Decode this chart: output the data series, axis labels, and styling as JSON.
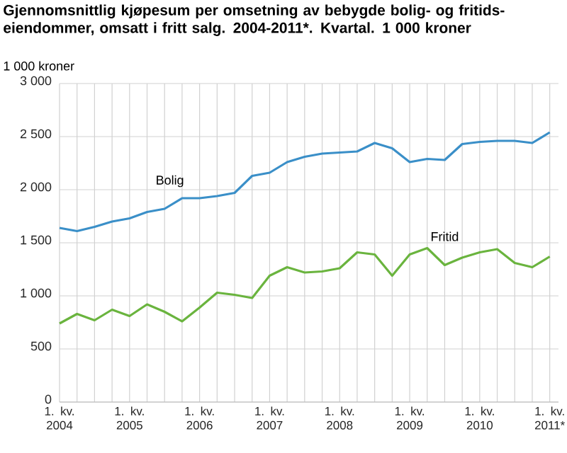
{
  "chart_data": {
    "type": "line",
    "title": "Gjennomsnittlig kjøpesum per omsetning av bebygde bolig- og fritids-eiendommer, omsatt i fritt salg. 2004-2011*. Kvartal. 1 000 kroner",
    "ylabel": "1 000 kroner",
    "categories": [
      "1. kv. 2004",
      null,
      null,
      null,
      "1. kv. 2005",
      null,
      null,
      null,
      "1. kv. 2006",
      null,
      null,
      null,
      "1. kv. 2007",
      null,
      null,
      null,
      "1. kv. 2008",
      null,
      null,
      null,
      "1. kv. 2009",
      null,
      null,
      null,
      "1. kv. 2010",
      null,
      null,
      null,
      "1. kv. 2011*"
    ],
    "series": [
      {
        "name": "Bolig",
        "color": "#3a8fc8",
        "values": [
          1640,
          1610,
          1650,
          1700,
          1730,
          1790,
          1820,
          1920,
          1920,
          1940,
          1970,
          2130,
          2160,
          2260,
          2310,
          2340,
          2350,
          2360,
          2440,
          2390,
          2260,
          2290,
          2280,
          2430,
          2450,
          2460,
          2460,
          2440,
          2540
        ]
      },
      {
        "name": "Fritid",
        "color": "#6ab43e",
        "values": [
          740,
          830,
          770,
          870,
          810,
          920,
          850,
          760,
          890,
          1030,
          1010,
          980,
          1190,
          1270,
          1220,
          1230,
          1260,
          1410,
          1390,
          1190,
          1390,
          1450,
          1290,
          1360,
          1410,
          1440,
          1310,
          1270,
          1370
        ]
      }
    ],
    "ylim": [
      0,
      3000
    ],
    "yticks": [
      0,
      500,
      {
        "value": 1000,
        "label": "1 000"
      },
      {
        "value": 1500,
        "label": "1 500"
      },
      {
        "value": 2000,
        "label": "2 000"
      },
      {
        "value": 2500,
        "label": "2 500"
      },
      {
        "value": 3000,
        "label": "3 000"
      }
    ],
    "grid": true,
    "legend": false,
    "marker": "none",
    "line_style": "solid"
  }
}
